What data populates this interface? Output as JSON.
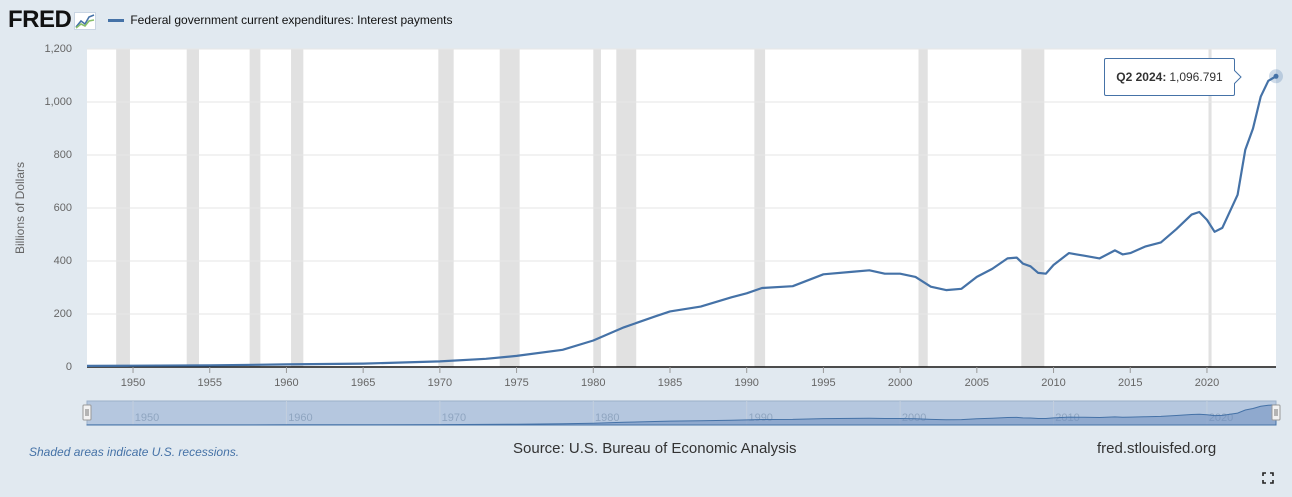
{
  "header": {
    "logo_text": "FRED",
    "legend_label": "Federal government current expenditures: Interest payments",
    "series_color": "#4572a7",
    "logo_icon": "trend-graph-icon"
  },
  "tooltip": {
    "label": "Q2 2024:",
    "value": "1,096.791"
  },
  "footer": {
    "recession_note": "Shaded areas indicate U.S. recessions.",
    "source": "Source: U.S. Bureau of Economic Analysis",
    "url": "fred.stlouisfed.org"
  },
  "controls": {
    "fullscreen_icon": "fullscreen-icon",
    "navigator_handles": [
      "navigator-left-handle-icon",
      "navigator-right-handle-icon"
    ]
  },
  "chart_data": {
    "type": "line",
    "title": "",
    "xlabel": "",
    "ylabel": "Billions of Dollars",
    "xlim": [
      1947,
      2024.5
    ],
    "ylim": [
      0,
      1200
    ],
    "grid": true,
    "legend_position": "top-left",
    "y_ticks": [
      "0",
      "200",
      "400",
      "600",
      "800",
      "1,000",
      "1,200"
    ],
    "x_ticks": [
      "1950",
      "1955",
      "1960",
      "1965",
      "1970",
      "1975",
      "1980",
      "1985",
      "1990",
      "1995",
      "2000",
      "2005",
      "2010",
      "2015",
      "2020"
    ],
    "navigator_ticks": [
      "1950",
      "1960",
      "1970",
      "1980",
      "1990",
      "2000",
      "2010",
      "2020"
    ],
    "recessions": [
      [
        1948.9,
        1949.8
      ],
      [
        1953.5,
        1954.3
      ],
      [
        1957.6,
        1958.3
      ],
      [
        1960.3,
        1961.1
      ],
      [
        1969.9,
        1970.9
      ],
      [
        1973.9,
        1975.2
      ],
      [
        1980.0,
        1980.5
      ],
      [
        1981.5,
        1982.8
      ],
      [
        1990.5,
        1991.2
      ],
      [
        2001.2,
        2001.8
      ],
      [
        2007.9,
        2009.4
      ],
      [
        2020.1,
        2020.3
      ]
    ],
    "series": [
      {
        "name": "Federal government current expenditures: Interest payments",
        "color": "#4572a7",
        "x": [
          1947,
          1950,
          1955,
          1960,
          1965,
          1970,
          1973,
          1975,
          1978,
          1980,
          1981,
          1982,
          1984,
          1985,
          1987,
          1989,
          1990,
          1991,
          1993,
          1995,
          1997,
          1998,
          1999,
          2000,
          2001,
          2002,
          2003,
          2004,
          2005,
          2006,
          2007,
          2007.6,
          2008,
          2008.5,
          2009,
          2009.5,
          2010,
          2011,
          2011.5,
          2012,
          2013,
          2014,
          2014.5,
          2015,
          2016,
          2017,
          2018,
          2019,
          2019.5,
          2020,
          2020.5,
          2021,
          2022,
          2022.5,
          2023,
          2023.5,
          2024,
          2024.5
        ],
        "y": [
          4,
          5,
          6,
          10,
          13,
          21,
          31,
          42,
          65,
          100,
          125,
          150,
          190,
          210,
          228,
          263,
          278,
          298,
          305,
          350,
          360,
          365,
          352,
          352,
          340,
          303,
          290,
          295,
          340,
          370,
          410,
          413,
          390,
          380,
          355,
          352,
          385,
          430,
          425,
          420,
          410,
          440,
          425,
          430,
          455,
          470,
          520,
          575,
          585,
          555,
          510,
          525,
          650,
          820,
          900,
          1020,
          1080,
          1097
        ]
      }
    ],
    "last_point": {
      "x": "Q2 2024",
      "y": 1096.791
    }
  }
}
